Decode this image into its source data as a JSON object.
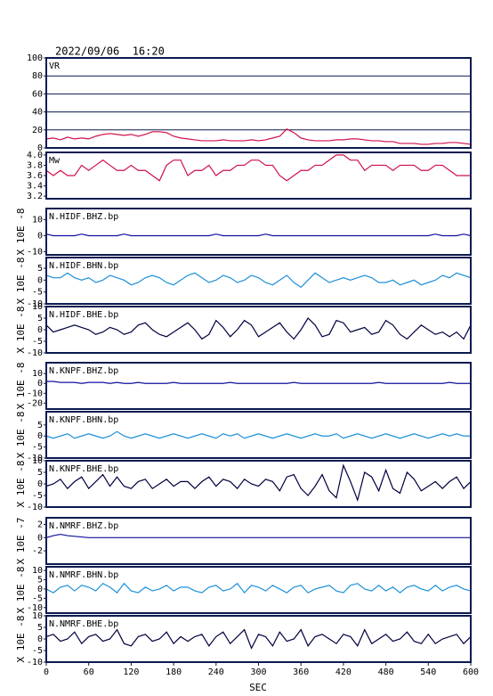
{
  "chart_data": {
    "type": "line",
    "title": "2022/09/06  16:20",
    "xlabel": "SEC",
    "xlim": [
      0,
      600
    ],
    "xticks": [
      0,
      60,
      120,
      180,
      240,
      300,
      360,
      420,
      480,
      540,
      600
    ],
    "x": [
      0,
      10,
      20,
      30,
      40,
      50,
      60,
      70,
      80,
      90,
      100,
      110,
      120,
      130,
      140,
      150,
      160,
      170,
      180,
      190,
      200,
      210,
      220,
      230,
      240,
      250,
      260,
      270,
      280,
      290,
      300,
      310,
      320,
      330,
      340,
      350,
      360,
      370,
      380,
      390,
      400,
      410,
      420,
      430,
      440,
      450,
      460,
      470,
      480,
      490,
      500,
      510,
      520,
      530,
      540,
      550,
      560,
      570,
      580,
      590,
      600
    ],
    "panels": [
      {
        "ylim": [
          0,
          100
        ],
        "yticks": [
          0,
          20,
          40,
          60,
          80,
          100
        ],
        "grid": true,
        "series": [
          {
            "name": "VR",
            "color": "#d0104a",
            "values": [
              10,
              11,
              9,
              12,
              10,
              11,
              10,
              13,
              15,
              16,
              15,
              14,
              15,
              13,
              15,
              18,
              18,
              17,
              13,
              11,
              10,
              9,
              8,
              8,
              8,
              9,
              8,
              8,
              8,
              9,
              8,
              9,
              11,
              13,
              21,
              17,
              11,
              9,
              8,
              8,
              8,
              9,
              9,
              10,
              10,
              9,
              8,
              8,
              7,
              7,
              5,
              5,
              5,
              4,
              4,
              5,
              5,
              6,
              6,
              5,
              4
            ]
          }
        ]
      },
      {
        "ylim": [
          3.15,
          4.05
        ],
        "yticks": [
          3.2,
          3.4,
          3.6,
          3.8,
          {
            "value": 4,
            "label": "4.0"
          }
        ],
        "grid": false,
        "series": [
          {
            "name": "Mw",
            "color": "#d0104a",
            "values": [
              3.7,
              3.6,
              3.7,
              3.6,
              3.6,
              3.8,
              3.7,
              3.8,
              3.9,
              3.8,
              3.7,
              3.7,
              3.8,
              3.7,
              3.7,
              3.6,
              3.5,
              3.8,
              3.9,
              3.9,
              3.6,
              3.7,
              3.7,
              3.8,
              3.6,
              3.7,
              3.7,
              3.8,
              3.8,
              3.9,
              3.9,
              3.8,
              3.8,
              3.6,
              3.5,
              3.6,
              3.7,
              3.7,
              3.8,
              3.8,
              3.9,
              4.0,
              4.0,
              3.9,
              3.9,
              3.7,
              3.8,
              3.8,
              3.8,
              3.7,
              3.8,
              3.8,
              3.8,
              3.7,
              3.7,
              3.8,
              3.8,
              3.7,
              3.6,
              3.6,
              3.6
            ]
          }
        ]
      },
      {
        "ylim": [
          -12,
          17
        ],
        "yticks": [
          -10,
          0,
          10
        ],
        "ylabel": "X 10E -8",
        "series": [
          {
            "name": "N.HIDF.BHZ.bp",
            "color": "#1010a0",
            "values": [
              1,
              0,
              0,
              0,
              0,
              1,
              0,
              0,
              0,
              0,
              0,
              1,
              0,
              0,
              0,
              0,
              0,
              0,
              0,
              0,
              0,
              0,
              0,
              0,
              1,
              0,
              0,
              0,
              0,
              0,
              0,
              1,
              0,
              0,
              0,
              0,
              0,
              0,
              0,
              0,
              0,
              0,
              0,
              0,
              0,
              0,
              0,
              0,
              0,
              0,
              0,
              0,
              0,
              0,
              0,
              1,
              0,
              0,
              0,
              1,
              0
            ]
          }
        ]
      },
      {
        "ylim": [
          -10,
          9.5
        ],
        "yticks": [
          -10,
          -5,
          0,
          5
        ],
        "ylabel": "X 10E -8",
        "series": [
          {
            "name": "N.HIDF.BHN.bp",
            "color": "#1e90d8",
            "values": [
              2,
              1,
              1,
              3,
              1,
              0,
              1,
              -1,
              0,
              2,
              1,
              0,
              -2,
              -1,
              1,
              2,
              1,
              -1,
              -2,
              0,
              2,
              3,
              1,
              -1,
              0,
              2,
              1,
              -1,
              0,
              2,
              1,
              -1,
              -2,
              0,
              2,
              -1,
              -3,
              0,
              3,
              1,
              -1,
              0,
              1,
              0,
              1,
              2,
              1,
              -1,
              -1,
              0,
              -2,
              -1,
              0,
              -2,
              -1,
              0,
              2,
              1,
              3,
              2,
              1
            ]
          }
        ]
      },
      {
        "ylim": [
          -10,
          10
        ],
        "yticks": [
          -10,
          -5,
          0,
          5,
          10
        ],
        "ylabel": "X 10E -8",
        "series": [
          {
            "name": "N.HIDF.BHE.bp",
            "color": "#000040",
            "values": [
              2,
              -1,
              0,
              1,
              2,
              1,
              0,
              -2,
              -1,
              1,
              0,
              -2,
              -1,
              2,
              3,
              0,
              -2,
              -3,
              -1,
              1,
              3,
              0,
              -4,
              -2,
              4,
              1,
              -3,
              0,
              4,
              2,
              -3,
              -1,
              1,
              3,
              -1,
              -4,
              0,
              5,
              2,
              -3,
              -2,
              4,
              3,
              -1,
              0,
              1,
              -2,
              -1,
              4,
              2,
              -2,
              -4,
              -1,
              2,
              0,
              -2,
              -1,
              -3,
              -1,
              -4,
              2
            ]
          }
        ]
      },
      {
        "ylim": [
          -26,
          21
        ],
        "yticks": [
          -20,
          -10,
          0,
          10
        ],
        "ylabel": "X 10E -8",
        "series": [
          {
            "name": "N.KNPF.BHZ.bp",
            "color": "#1010a0",
            "values": [
              2,
              2,
              1,
              1,
              1,
              0,
              1,
              1,
              1,
              0,
              1,
              0,
              0,
              1,
              0,
              0,
              0,
              0,
              1,
              0,
              0,
              0,
              0,
              0,
              0,
              0,
              1,
              0,
              0,
              0,
              0,
              0,
              0,
              0,
              0,
              1,
              0,
              0,
              0,
              0,
              0,
              0,
              0,
              0,
              0,
              0,
              0,
              1,
              0,
              0,
              0,
              0,
              0,
              0,
              0,
              0,
              0,
              1,
              0,
              0,
              0
            ]
          }
        ]
      },
      {
        "ylim": [
          -10,
          11
        ],
        "yticks": [
          -10,
          -5,
          0,
          5
        ],
        "ylabel": "X 10E -8",
        "series": [
          {
            "name": "N.KNPF.BHN.bp",
            "color": "#1e90d8",
            "values": [
              0,
              -1,
              0,
              1,
              -1,
              0,
              1,
              0,
              -1,
              0,
              2,
              0,
              -1,
              0,
              1,
              0,
              -1,
              0,
              1,
              0,
              -1,
              0,
              1,
              0,
              -1,
              1,
              0,
              1,
              -1,
              0,
              1,
              0,
              -1,
              0,
              1,
              0,
              -1,
              0,
              1,
              0,
              0,
              1,
              -1,
              0,
              1,
              0,
              -1,
              0,
              1,
              0,
              -1,
              0,
              1,
              0,
              -1,
              0,
              1,
              0,
              1,
              0,
              0
            ]
          }
        ]
      },
      {
        "ylim": [
          -10,
          10
        ],
        "yticks": [
          -10,
          -5,
          0,
          5,
          10
        ],
        "ylabel": "X 10E -8",
        "series": [
          {
            "name": "N.KNPF.BHE.bp",
            "color": "#000040",
            "values": [
              -1,
              0,
              2,
              -2,
              1,
              3,
              -2,
              1,
              4,
              -1,
              3,
              -1,
              -2,
              1,
              2,
              -2,
              0,
              2,
              -1,
              1,
              1,
              -2,
              1,
              3,
              -1,
              2,
              1,
              -2,
              2,
              0,
              -1,
              2,
              1,
              -3,
              3,
              4,
              -2,
              -5,
              -1,
              4,
              -3,
              -6,
              8,
              1,
              -7,
              5,
              3,
              -3,
              6,
              -2,
              -4,
              5,
              2,
              -3,
              -1,
              1,
              -2,
              1,
              3,
              -2,
              1
            ]
          }
        ]
      },
      {
        "ylim": [
          -4,
          3
        ],
        "yticks": [
          -2,
          0,
          2
        ],
        "ylabel": "X 10E -7",
        "series": [
          {
            "name": "N.NMRF.BHZ.bp",
            "color": "#1010a0",
            "values": [
              0,
              0.3,
              0.5,
              0.3,
              0.2,
              0.1,
              0,
              0,
              0,
              0,
              0,
              0,
              0,
              0,
              0,
              0,
              0,
              0,
              0,
              0,
              0,
              0,
              0,
              0,
              0,
              0,
              0,
              0,
              0,
              0,
              0,
              0,
              0,
              0,
              0,
              0,
              0,
              0,
              0,
              0,
              0,
              0,
              0,
              0,
              0,
              0,
              0,
              0,
              0,
              0,
              0,
              0,
              0,
              0,
              0,
              0,
              0,
              0,
              0,
              0,
              0
            ]
          }
        ]
      },
      {
        "ylim": [
          -13,
          12
        ],
        "yticks": [
          -10,
          -5,
          0,
          5,
          10
        ],
        "ylabel": "X 10E -8",
        "series": [
          {
            "name": "N.NMRF.BHN.bp",
            "color": "#1e90d8",
            "values": [
              0,
              -2,
              1,
              2,
              -1,
              2,
              1,
              -1,
              3,
              1,
              -2,
              3,
              -1,
              -2,
              1,
              -1,
              0,
              2,
              -1,
              1,
              1,
              -1,
              -2,
              1,
              2,
              -1,
              0,
              3,
              -2,
              2,
              1,
              -1,
              2,
              0,
              -2,
              1,
              2,
              -2,
              0,
              1,
              2,
              -1,
              -2,
              2,
              3,
              0,
              -1,
              2,
              -1,
              1,
              -2,
              1,
              2,
              0,
              -1,
              2,
              -1,
              1,
              2,
              0,
              -1
            ]
          }
        ]
      },
      {
        "ylim": [
          -10,
          10
        ],
        "yticks": [
          -10,
          -5,
          0,
          5,
          10
        ],
        "ylabel": "X 10E -8",
        "series": [
          {
            "name": "N.NMRF.BHE.bp",
            "color": "#000040",
            "values": [
              1,
              2,
              -1,
              0,
              3,
              -2,
              1,
              2,
              -1,
              0,
              4,
              -2,
              -3,
              1,
              2,
              -1,
              0,
              3,
              -2,
              1,
              -1,
              1,
              2,
              -3,
              1,
              3,
              -2,
              1,
              4,
              -4,
              2,
              1,
              -3,
              3,
              -1,
              0,
              4,
              -3,
              1,
              2,
              0,
              -2,
              2,
              1,
              -3,
              4,
              -2,
              0,
              2,
              -1,
              0,
              3,
              -1,
              -2,
              2,
              -2,
              0,
              1,
              2,
              -2,
              1
            ]
          }
        ]
      }
    ]
  }
}
